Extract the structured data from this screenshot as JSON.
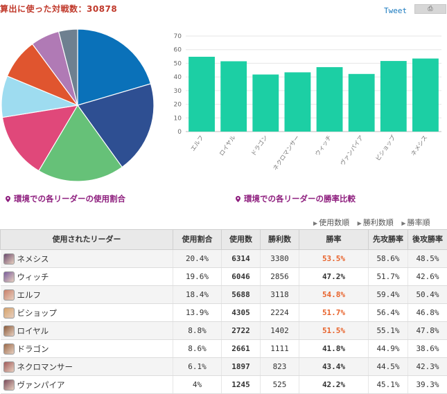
{
  "header": {
    "title": "算出に使った対戦数：30878",
    "tweet_label": "Tweet",
    "fb_label": "⎙"
  },
  "captions": {
    "pie": "環境での各リーダーの使用割合",
    "bar": "環境での各リーダーの勝率比較"
  },
  "sort_links": [
    "使用数順",
    "勝利数順",
    "勝率順"
  ],
  "table": {
    "headers": [
      "使用されたリーダー",
      "使用割合",
      "使用数",
      "勝利数",
      "勝率",
      "先攻勝率",
      "後攻勝率"
    ],
    "rows": [
      {
        "name": "ネメシス",
        "share": "20.4%",
        "uses": "6314",
        "wins": "3380",
        "winrate": "53.5%",
        "first": "58.6%",
        "second": "48.5%",
        "icon_color": "#6b4a6e"
      },
      {
        "name": "ウィッチ",
        "share": "19.6%",
        "uses": "6046",
        "wins": "2856",
        "winrate": "47.2%",
        "first": "51.7%",
        "second": "42.6%",
        "icon_color": "#7a5e9c"
      },
      {
        "name": "エルフ",
        "share": "18.4%",
        "uses": "5688",
        "wins": "3118",
        "winrate": "54.8%",
        "first": "59.4%",
        "second": "50.4%",
        "icon_color": "#c9806a"
      },
      {
        "name": "ビショップ",
        "share": "13.9%",
        "uses": "4305",
        "wins": "2224",
        "winrate": "51.7%",
        "first": "56.4%",
        "second": "46.8%",
        "icon_color": "#d6a36b"
      },
      {
        "name": "ロイヤル",
        "share": "8.8%",
        "uses": "2722",
        "wins": "1402",
        "winrate": "51.5%",
        "first": "55.1%",
        "second": "47.8%",
        "icon_color": "#8a5a3a"
      },
      {
        "name": "ドラゴン",
        "share": "8.6%",
        "uses": "2661",
        "wins": "1111",
        "winrate": "41.8%",
        "first": "44.9%",
        "second": "38.6%",
        "icon_color": "#9a6a4a"
      },
      {
        "name": "ネクロマンサー",
        "share": "6.1%",
        "uses": "1897",
        "wins": "823",
        "winrate": "43.4%",
        "first": "44.5%",
        "second": "42.3%",
        "icon_color": "#a05a5a"
      },
      {
        "name": "ヴァンパイア",
        "share": "4%",
        "uses": "1245",
        "wins": "525",
        "winrate": "42.2%",
        "first": "45.1%",
        "second": "39.3%",
        "icon_color": "#7a4a5a"
      }
    ]
  },
  "chart_data": [
    {
      "type": "pie",
      "categories": [
        "ネメシス",
        "ウィッチ",
        "エルフ",
        "ビショップ",
        "ロイヤル",
        "ドラゴン",
        "ネクロマンサー",
        "ヴァンパイア"
      ],
      "values": [
        20.4,
        19.6,
        18.4,
        13.9,
        8.8,
        8.6,
        6.1,
        4.0
      ],
      "colors": [
        "#0a71b9",
        "#2e4f92",
        "#66c178",
        "#e0487a",
        "#9edcf0",
        "#e0552f",
        "#b07ab5",
        "#6e8090"
      ],
      "title": ""
    },
    {
      "type": "bar",
      "categories": [
        "エルフ",
        "ロイヤル",
        "ドラゴン",
        "ネクロマンサー",
        "ウィッチ",
        "ヴァンパイア",
        "ビショップ",
        "ネメシス"
      ],
      "values": [
        54.8,
        51.5,
        41.8,
        43.4,
        47.2,
        42.2,
        51.7,
        53.5
      ],
      "ylim": [
        0,
        70
      ],
      "yticks": [
        0,
        10,
        20,
        30,
        40,
        50,
        60,
        70
      ],
      "color": "#1ccfa4",
      "grid": true,
      "title": "",
      "xlabel": "",
      "ylabel": ""
    }
  ]
}
